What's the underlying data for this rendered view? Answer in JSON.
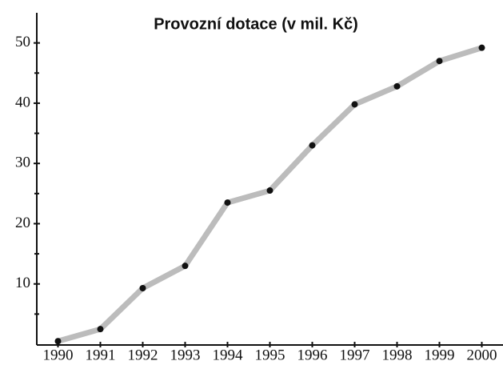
{
  "chart_data": {
    "type": "line",
    "title": "Provozní dotace (v mil. Kč)",
    "categories": [
      "1990",
      "1991",
      "1992",
      "1993",
      "1994",
      "1995",
      "1996",
      "1997",
      "1998",
      "1999",
      "2000"
    ],
    "values": [
      0.5,
      2.5,
      9.3,
      13,
      23.5,
      25.5,
      33,
      39.8,
      42.8,
      47,
      49.2
    ],
    "color": "#bcbcbc",
    "marker_color": "#111111",
    "ylim": [
      0,
      55
    ],
    "yticks": [
      10,
      20,
      30,
      40,
      50
    ],
    "minor_yticks": [
      5,
      15,
      25,
      35,
      45
    ],
    "grid": false
  }
}
